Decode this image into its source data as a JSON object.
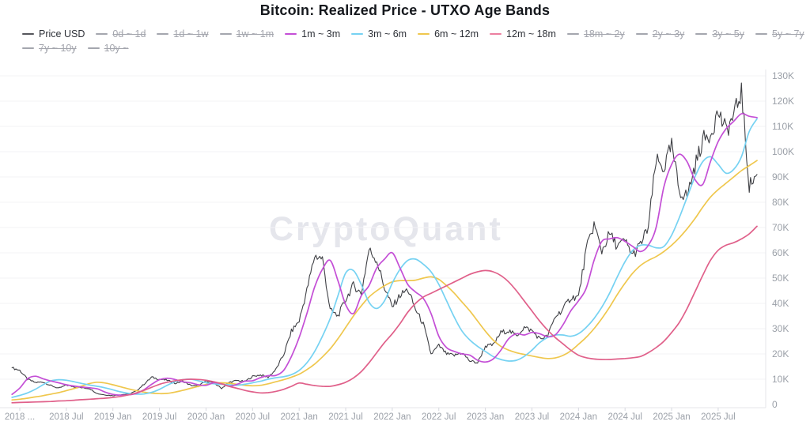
{
  "title": "Bitcoin: Realized Price - UTXO Age Bands",
  "watermark": "CryptoQuant",
  "colors": {
    "price": "#3f4045",
    "band_1m_3m": "#c44fd6",
    "band_3m_6m": "#76d2f2",
    "band_6m_12m": "#efc74d",
    "band_12m_18m": "#e0608a",
    "inactive_legend": "#a4a6ae",
    "grid": "#f3f3f6",
    "axis": "#e4e5ea",
    "tick_text": "#9ba0a8"
  },
  "legend": {
    "rows": [
      [
        {
          "id": "price-usd",
          "label": "Price USD",
          "color": "#55565c",
          "active": true
        },
        {
          "id": "0d-1d",
          "label": "0d ~ 1d",
          "color": "#a4a6ae",
          "active": false
        },
        {
          "id": "1d-1w",
          "label": "1d ~ 1w",
          "color": "#a4a6ae",
          "active": false
        },
        {
          "id": "1w-1m",
          "label": "1w ~ 1m",
          "color": "#a4a6ae",
          "active": false
        },
        {
          "id": "1m-3m",
          "label": "1m ~ 3m",
          "color": "#c44fd6",
          "active": true
        },
        {
          "id": "3m-6m",
          "label": "3m ~ 6m",
          "color": "#76d2f2",
          "active": true
        },
        {
          "id": "6m-12m",
          "label": "6m ~ 12m",
          "color": "#efc74d",
          "active": true
        },
        {
          "id": "12m-18m",
          "label": "12m ~ 18m",
          "color": "#ec7fa0",
          "active": true
        },
        {
          "id": "18m-2y",
          "label": "18m ~ 2y",
          "color": "#a4a6ae",
          "active": false
        },
        {
          "id": "2y-3y",
          "label": "2y ~ 3y",
          "color": "#a4a6ae",
          "active": false
        },
        {
          "id": "3y-5y",
          "label": "3y ~ 5y",
          "color": "#a4a6ae",
          "active": false
        },
        {
          "id": "5y-7y",
          "label": "5y ~ 7y",
          "color": "#a4a6ae",
          "active": false
        }
      ],
      [
        {
          "id": "7y-10y",
          "label": "7y ~ 10y",
          "color": "#a4a6ae",
          "active": false
        },
        {
          "id": "10y",
          "label": "10y ~",
          "color": "#a4a6ae",
          "active": false
        }
      ]
    ]
  },
  "chart_data": {
    "type": "line",
    "title": "Bitcoin: Realized Price - UTXO Age Bands",
    "x_start_month": "2017-12",
    "x_interval": "1 month",
    "x_tick_month_indices": [
      1,
      7,
      13,
      19,
      25,
      31,
      37,
      43,
      49,
      55,
      61,
      67,
      73,
      79,
      85,
      91
    ],
    "x_tick_labels": [
      "2018 ...",
      "2018 Jul",
      "2019 Jan",
      "2019 Jul",
      "2020 Jan",
      "2020 Jul",
      "2021 Jan",
      "2021 Jul",
      "2022 Jan",
      "2022 Jul",
      "2023 Jan",
      "2023 Jul",
      "2024 Jan",
      "2024 Jul",
      "2025 Jan",
      "2025 Jul"
    ],
    "y_tick_labels": [
      "0",
      "10K",
      "20K",
      "30K",
      "40K",
      "50K",
      "60K",
      "70K",
      "80K",
      "90K",
      "100K",
      "110K",
      "120K",
      "130K"
    ],
    "ylim_usd": [
      0,
      130000
    ],
    "grid": "horizontal-faint",
    "legend_position": "top-left",
    "values_unit": "thousand USD",
    "series": [
      {
        "name": "Price USD",
        "color": "#3f4045",
        "style": "price",
        "values_k_usd": [
          14.5,
          13.5,
          10.0,
          8.7,
          8.9,
          7.5,
          6.4,
          7.7,
          7.0,
          6.6,
          6.3,
          4.3,
          3.8,
          3.5,
          3.9,
          4.1,
          5.3,
          8.0,
          10.8,
          10.0,
          9.6,
          8.3,
          9.2,
          7.6,
          7.2,
          9.4,
          8.6,
          6.4,
          8.8,
          9.5,
          9.1,
          11.1,
          11.7,
          10.8,
          13.8,
          19.7,
          28.9,
          33.1,
          45.2,
          58.8,
          57.8,
          37.3,
          35.0,
          41.5,
          47.2,
          43.8,
          61.3,
          57.0,
          46.2,
          38.5,
          43.2,
          45.5,
          37.6,
          31.8,
          19.9,
          23.3,
          20.0,
          19.4,
          20.5,
          17.2,
          16.5,
          23.1,
          23.5,
          28.5,
          29.2,
          27.2,
          30.5,
          29.2,
          26.0,
          26.9,
          34.7,
          37.7,
          42.3,
          42.6,
          61.2,
          71.3,
          60.6,
          67.5,
          62.7,
          64.6,
          59.0,
          63.3,
          70.2,
          96.4,
          93.4,
          102.4,
          84.3,
          82.5,
          94.2,
          104.6,
          107.1,
          115.8,
          108.2,
          114.0,
          124.0,
          86.5,
          91.0
        ]
      },
      {
        "name": "1m ~ 3m",
        "color": "#c44fd6",
        "style": "band",
        "values_k_usd": [
          4.0,
          6.5,
          10.2,
          11.2,
          10.2,
          9.3,
          8.6,
          7.8,
          7.3,
          6.9,
          6.6,
          6.2,
          4.9,
          4.0,
          3.7,
          3.8,
          4.4,
          5.8,
          8.0,
          9.8,
          10.4,
          9.9,
          9.0,
          8.6,
          7.8,
          7.6,
          8.6,
          8.2,
          7.2,
          8.0,
          9.2,
          9.4,
          10.6,
          11.4,
          11.5,
          13.5,
          19.0,
          26.5,
          36.0,
          46.5,
          53.5,
          57.0,
          49.0,
          39.5,
          36.0,
          43.0,
          47.0,
          54.0,
          57.5,
          60.0,
          54.0,
          47.5,
          44.5,
          42.0,
          36.0,
          27.0,
          22.5,
          21.0,
          20.0,
          19.5,
          17.5,
          16.8,
          18.0,
          21.5,
          26.0,
          28.0,
          27.5,
          28.5,
          28.0,
          26.8,
          27.5,
          31.5,
          37.0,
          41.0,
          46.0,
          57.0,
          64.5,
          65.5,
          66.0,
          64.5,
          62.5,
          60.5,
          63.0,
          70.0,
          86.0,
          95.0,
          99.0,
          96.0,
          89.0,
          87.0,
          96.0,
          104.0,
          109.0,
          112.0,
          115.0,
          114.0,
          113.5
        ]
      },
      {
        "name": "3m ~ 6m",
        "color": "#76d2f2",
        "style": "band",
        "values_k_usd": [
          2.8,
          3.6,
          4.6,
          6.0,
          7.8,
          9.3,
          9.8,
          9.6,
          9.0,
          8.3,
          7.7,
          7.2,
          6.6,
          5.8,
          5.0,
          4.4,
          4.1,
          4.2,
          4.8,
          6.0,
          7.6,
          9.0,
          9.8,
          10.0,
          9.4,
          8.6,
          8.2,
          8.0,
          7.8,
          7.6,
          8.0,
          8.6,
          9.2,
          10.0,
          10.6,
          11.0,
          11.8,
          13.5,
          16.5,
          21.0,
          27.0,
          34.0,
          43.0,
          52.0,
          53.0,
          47.5,
          40.5,
          38.0,
          41.0,
          48.0,
          53.5,
          57.0,
          57.5,
          55.5,
          52.5,
          47.5,
          41.0,
          34.5,
          29.0,
          25.5,
          23.0,
          21.0,
          19.0,
          17.8,
          17.2,
          17.5,
          19.0,
          21.5,
          24.5,
          26.5,
          27.5,
          27.5,
          27.0,
          28.0,
          30.5,
          34.0,
          38.5,
          44.0,
          50.5,
          56.5,
          61.0,
          63.0,
          63.0,
          62.0,
          62.5,
          67.0,
          74.0,
          82.0,
          90.0,
          96.0,
          98.0,
          95.0,
          91.5,
          93.0,
          98.0,
          108.0,
          113.0
        ]
      },
      {
        "name": "6m ~ 12m",
        "color": "#efc74d",
        "style": "band",
        "values_k_usd": [
          1.8,
          2.1,
          2.5,
          3.0,
          3.5,
          4.1,
          4.7,
          5.5,
          6.3,
          7.3,
          8.3,
          8.8,
          8.5,
          7.8,
          7.0,
          6.2,
          5.5,
          4.9,
          4.5,
          4.3,
          4.4,
          4.9,
          5.6,
          6.4,
          7.2,
          7.9,
          8.4,
          8.6,
          8.4,
          8.0,
          7.6,
          7.4,
          7.6,
          8.2,
          9.0,
          9.8,
          10.8,
          12.0,
          13.8,
          16.0,
          18.8,
          22.0,
          26.0,
          30.5,
          35.0,
          39.0,
          42.5,
          45.0,
          47.0,
          48.5,
          49.0,
          49.0,
          49.2,
          50.0,
          50.5,
          49.5,
          47.0,
          44.0,
          40.5,
          37.0,
          33.0,
          29.0,
          25.5,
          23.0,
          21.5,
          20.5,
          19.8,
          19.2,
          18.6,
          18.2,
          18.4,
          19.4,
          21.2,
          23.8,
          26.6,
          30.0,
          34.0,
          38.5,
          43.5,
          48.0,
          52.0,
          55.0,
          57.0,
          58.5,
          60.5,
          63.0,
          66.0,
          69.5,
          73.5,
          78.0,
          82.0,
          85.0,
          87.5,
          90.0,
          92.5,
          94.5,
          96.5
        ]
      },
      {
        "name": "12m ~ 18m",
        "color": "#e0608a",
        "style": "band",
        "values_k_usd": [
          0.7,
          0.8,
          0.9,
          1.0,
          1.1,
          1.2,
          1.4,
          1.5,
          1.7,
          1.9,
          2.1,
          2.3,
          2.5,
          2.8,
          3.2,
          3.8,
          4.6,
          5.6,
          6.8,
          8.0,
          8.8,
          9.4,
          9.8,
          10.0,
          9.9,
          9.6,
          9.0,
          8.2,
          7.2,
          6.4,
          5.6,
          5.0,
          4.6,
          4.7,
          5.2,
          6.0,
          7.2,
          8.5,
          8.0,
          7.5,
          7.2,
          7.2,
          7.8,
          8.8,
          10.5,
          13.0,
          16.5,
          20.5,
          24.5,
          28.0,
          32.0,
          36.5,
          40.0,
          42.5,
          44.0,
          45.5,
          47.0,
          48.5,
          50.0,
          51.5,
          52.5,
          53.0,
          52.5,
          51.0,
          48.5,
          45.0,
          41.0,
          37.0,
          33.0,
          29.5,
          26.5,
          24.0,
          21.5,
          19.5,
          18.5,
          18.0,
          17.8,
          17.8,
          18.0,
          18.2,
          18.5,
          19.0,
          20.5,
          22.5,
          25.0,
          28.5,
          32.5,
          38.0,
          44.5,
          51.0,
          57.0,
          61.0,
          63.0,
          64.0,
          65.5,
          67.5,
          70.5
        ]
      }
    ]
  }
}
